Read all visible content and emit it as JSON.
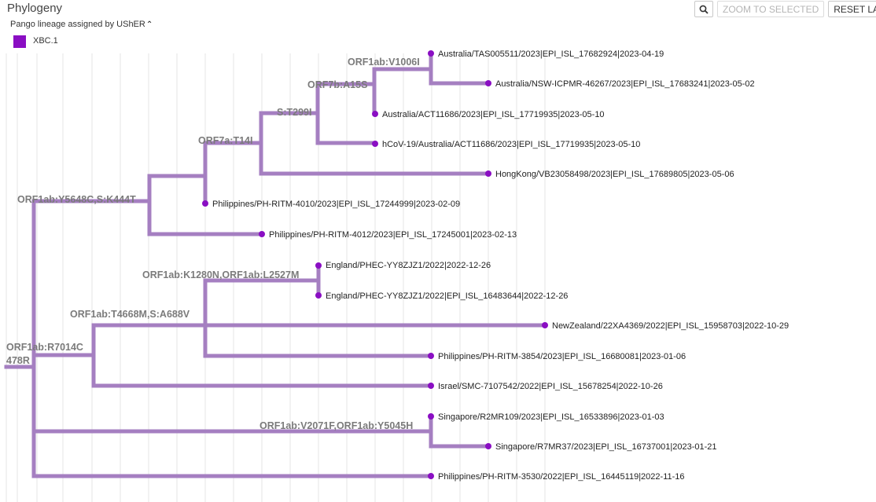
{
  "panel": {
    "title": "Phylogeny"
  },
  "toolbar": {
    "search_icon": "magnifier-icon",
    "zoom_label": "ZOOM TO SELECTED",
    "reset_label": "RESET LAYOUT"
  },
  "legend": {
    "title": "Pango lineage assigned by UShER",
    "collapse_icon": "chevron-up-icon",
    "items": [
      {
        "label": "XBC.1",
        "color": "#8a0ec3"
      }
    ]
  },
  "colors": {
    "branch": "#a57fc1",
    "tip": "#8a0ec3",
    "mutation_text": "#7b7b7b"
  },
  "tips": [
    "Australia/TAS005511/2023|EPI_ISL_17682924|2023-04-19",
    "Australia/NSW-ICPMR-46267/2023|EPI_ISL_17683241|2023-05-02",
    "Australia/ACT11686/2023|EPI_ISL_17719935|2023-05-10",
    "hCoV-19/Australia/ACT11686/2023|EPI_ISL_17719935|2023-05-10",
    "HongKong/VB23058498/2023|EPI_ISL_17689805|2023-05-06",
    "Philippines/PH-RITM-4010/2023|EPI_ISL_17244999|2023-02-09",
    "Philippines/PH-RITM-4012/2023|EPI_ISL_17245001|2023-02-13",
    "England/PHEC-YY8ZJZ1/2022|2022-12-26",
    "England/PHEC-YY8ZJZ1/2022|EPI_ISL_16483644|2022-12-26",
    "NewZealand/22XA4369/2022|EPI_ISL_15958703|2022-10-29",
    "Philippines/PH-RITM-3854/2023|EPI_ISL_16680081|2023-01-06",
    "Israel/SMC-7107542/2022|EPI_ISL_15678254|2022-10-26",
    "Singapore/R2MR109/2023|EPI_ISL_16533896|2023-01-03",
    "Singapore/R7MR37/2023|EPI_ISL_16737001|2023-01-21",
    "Philippines/PH-RITM-3530/2022|EPI_ISL_16445119|2022-11-16"
  ],
  "mutations": [
    "ORF1ab:V1006I",
    "ORF7b:A15S",
    "S:T299I",
    "ORF7a:T14I",
    "ORF1ab:Y5648C,S:K444T",
    "ORF1ab:K1280N,ORF1ab:L2527M",
    "ORF1ab:T4668M,S:A688V",
    "ORF1ab:R7014C",
    "ORF1ab:V2071F,ORF1ab:Y5045H",
    "478R"
  ]
}
